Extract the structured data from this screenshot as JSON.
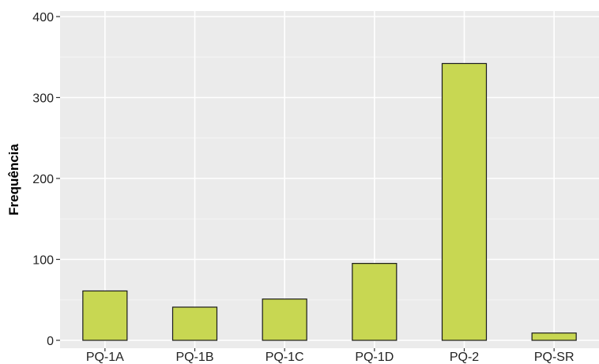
{
  "chart_data": {
    "type": "bar",
    "title": "",
    "xlabel": "",
    "ylabel": "Frequência",
    "categories": [
      "PQ-1A",
      "PQ-1B",
      "PQ-1C",
      "PQ-1D",
      "PQ-2",
      "PQ-SR"
    ],
    "values": [
      61,
      41,
      51,
      95,
      342,
      9
    ],
    "ylim": [
      0,
      400
    ],
    "yticks": [
      0,
      100,
      200,
      300,
      400
    ],
    "grid": true,
    "legend": "none",
    "colors": {
      "bar_fill": "#c8d752",
      "bar_stroke": "#1a1a1a",
      "panel_bg": "#ebebeb",
      "grid_major": "#ffffff",
      "grid_minor": "#f5f5f5"
    }
  }
}
